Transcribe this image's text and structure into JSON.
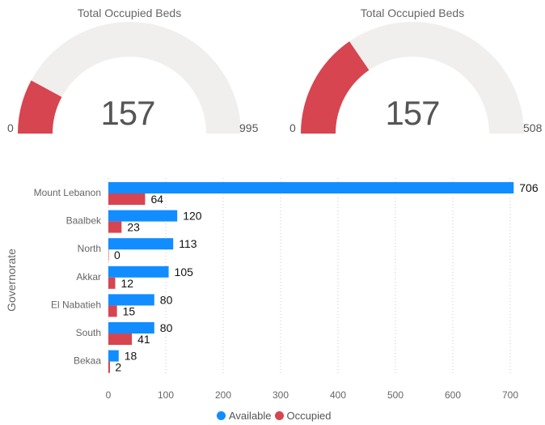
{
  "gauges": [
    {
      "title": "Total Occupied Beds",
      "value": 157,
      "value_label": "157",
      "min": 0,
      "min_label": "0",
      "max": 995,
      "max_label": "995",
      "fill_color": "#D64550",
      "track_color": "#F0EFEE"
    },
    {
      "title": "Total Occupied Beds",
      "value": 157,
      "value_label": "157",
      "min": 0,
      "min_label": "0",
      "max": 508,
      "max_label": "508",
      "fill_color": "#D64550",
      "track_color": "#F0EFEE"
    }
  ],
  "chart_data": {
    "type": "bar",
    "orientation": "horizontal",
    "categories": [
      "Mount Lebanon",
      "Baalbek",
      "North",
      "Akkar",
      "El Nabatieh",
      "South",
      "Bekaa"
    ],
    "series": [
      {
        "name": "Available",
        "color": "#118DFF",
        "values": [
          706,
          120,
          113,
          105,
          80,
          80,
          18
        ]
      },
      {
        "name": "Occupied",
        "color": "#D64550",
        "values": [
          64,
          23,
          0,
          12,
          15,
          41,
          2
        ]
      }
    ],
    "ylabel": "Governorate",
    "xlim": [
      0,
      700
    ],
    "xticks": [
      0,
      100,
      200,
      300,
      400,
      500,
      600,
      700
    ],
    "grid": true,
    "legend_position": "bottom"
  },
  "legend": [
    {
      "name": "Available",
      "color": "#118DFF"
    },
    {
      "name": "Occupied",
      "color": "#D64550"
    }
  ]
}
